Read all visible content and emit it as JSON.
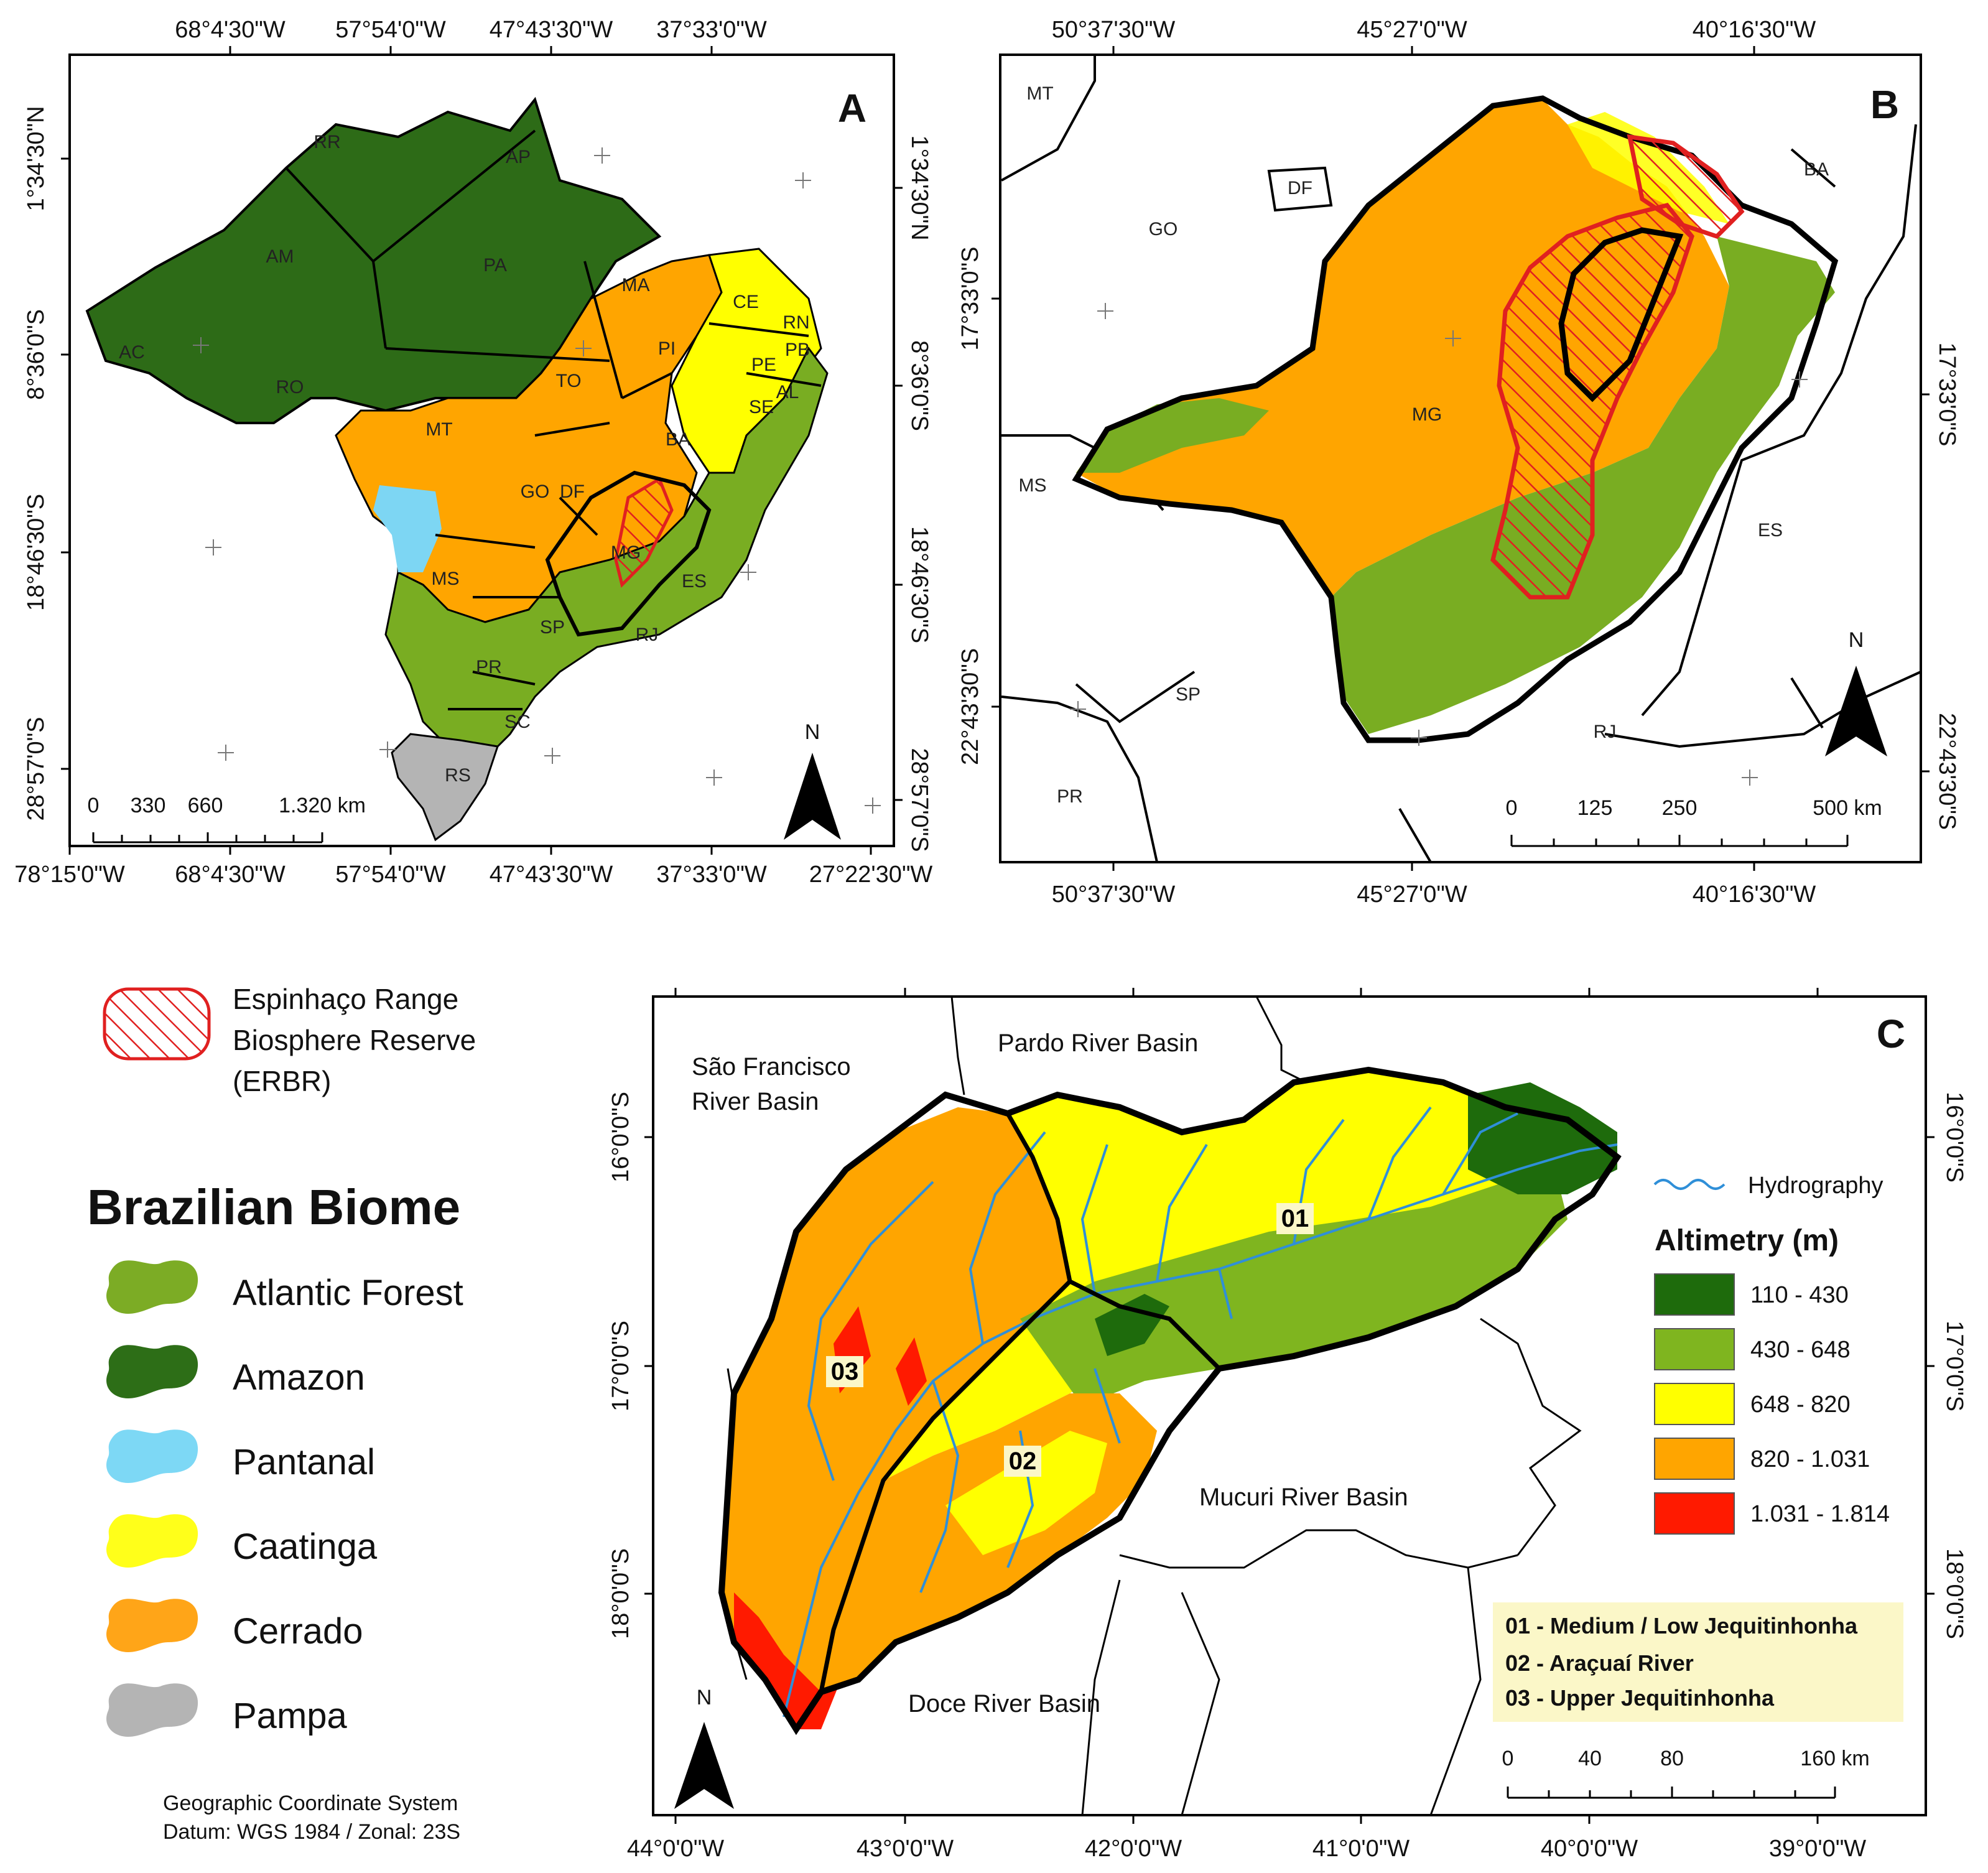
{
  "panels": {
    "a": {
      "letter": "A",
      "top_ticks": [
        "68°4'30\"W",
        "57°54'0\"W",
        "47°43'30\"W",
        "37°33'0\"W"
      ],
      "bottom_ticks": [
        "78°15'0\"W",
        "68°4'30\"W",
        "57°54'0\"W",
        "47°43'30\"W",
        "37°33'0\"W",
        "27°22'30\"W"
      ],
      "left_ticks": [
        "1°34'30\"N",
        "8°36'0\"S",
        "18°46'30\"S",
        "28°57'0\"S"
      ],
      "right_ticks": [
        "1°34'30\"N",
        "8°36'0\"S",
        "18°46'30\"S",
        "28°57'0\"S"
      ],
      "states": [
        "RR",
        "AP",
        "AM",
        "PA",
        "AC",
        "RO",
        "MA",
        "CE",
        "RN",
        "PB",
        "PI",
        "PE",
        "AL",
        "SE",
        "TO",
        "BA",
        "MT",
        "GO",
        "DF",
        "MG",
        "ES",
        "MS",
        "SP",
        "RJ",
        "PR",
        "SC",
        "RS"
      ],
      "scale": {
        "labels": [
          "0",
          "330",
          "660",
          "1.320 km"
        ]
      },
      "north": "N"
    },
    "b": {
      "letter": "B",
      "top_ticks": [
        "50°37'30\"W",
        "45°27'0\"W",
        "40°16'30\"W"
      ],
      "bottom_ticks": [
        "50°37'30\"W",
        "45°27'0\"W",
        "40°16'30\"W"
      ],
      "left_ticks": [
        "17°33'0\"S",
        "22°43'30\"S"
      ],
      "right_ticks": [
        "17°33'0\"S",
        "22°43'30\"S"
      ],
      "states": [
        "MT",
        "DF",
        "GO",
        "BA",
        "MG",
        "MS",
        "ES",
        "SP",
        "RJ",
        "PR"
      ],
      "scale": {
        "labels": [
          "0",
          "125",
          "250",
          "500 km"
        ]
      },
      "north": "N"
    },
    "c": {
      "letter": "C",
      "bottom_ticks": [
        "44°0'0\"W",
        "43°0'0\"W",
        "42°0'0\"W",
        "41°0'0\"W",
        "40°0'0\"W",
        "39°0'0\"W"
      ],
      "left_ticks": [
        "16°0'0\"S",
        "17°0'0\"S",
        "18°0'0\"S"
      ],
      "right_ticks": [
        "16°0'0\"S",
        "17°0'0\"S",
        "18°0'0\"S"
      ],
      "basins": {
        "sao_francisco_1": "São Francisco",
        "sao_francisco_2": "River Basin",
        "pardo": "Pardo River Basin",
        "mucuri": "Mucuri River Basin",
        "doce": "Doce River Basin"
      },
      "sub_basins": [
        "01",
        "02",
        "03"
      ],
      "hydrography": "Hydrography",
      "altimetry_title": "Altimetry (m)",
      "altimetry": [
        {
          "label": "110 - 430",
          "color": "#1e6b0c"
        },
        {
          "label": "430 - 648",
          "color": "#7fb51f"
        },
        {
          "label": "648 - 820",
          "color": "#ffff00"
        },
        {
          "label": "820 - 1.031",
          "color": "#ffa500"
        },
        {
          "label": "1.031 - 1.814",
          "color": "#ff1a00"
        }
      ],
      "sub_basin_names": [
        "01 - Medium / Low Jequitinhonha",
        "02 - Araçuaí River",
        "03 - Upper Jequitinhonha"
      ],
      "scale": {
        "labels": [
          "0",
          "40",
          "80",
          "160 km"
        ]
      },
      "north": "N"
    }
  },
  "legend": {
    "erbr_line1": "Espinhaço Range",
    "erbr_line2": "Biosphere Reserve",
    "erbr_line3": "(ERBR)",
    "title": "Brazilian Biome",
    "biomes": [
      {
        "label": "Atlantic Forest",
        "color": "#7cac25"
      },
      {
        "label": "Amazon",
        "color": "#2d6e17"
      },
      {
        "label": "Pantanal",
        "color": "#7dd8f5"
      },
      {
        "label": "Caatinga",
        "color": "#ffff1a"
      },
      {
        "label": "Cerrado",
        "color": "#ffa518"
      },
      {
        "label": "Pampa",
        "color": "#b4b4b4"
      }
    ],
    "crs_line1": "Geographic Coordinate System",
    "crs_line2": "Datum: WGS 1984 /  Zonal: 23S"
  },
  "colors": {
    "atlantic_forest": "#79ad22",
    "amazon": "#2d6b17",
    "pantanal": "#7dd6f3",
    "caatinga": "#ffff00",
    "cerrado": "#ffa500",
    "pampa": "#b4b4b4",
    "erbr": "#e02020",
    "hydro": "#2f8fd8",
    "sub_basin_box": "#fbf7c8"
  }
}
